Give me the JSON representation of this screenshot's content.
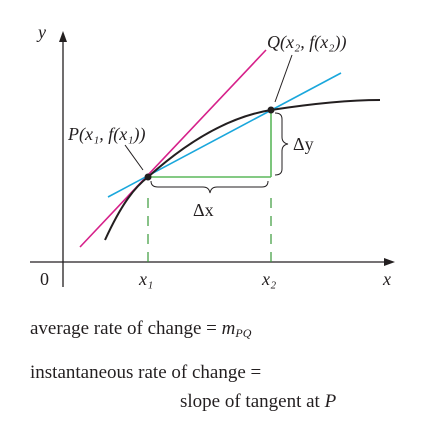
{
  "labels": {
    "axis_y": "y",
    "axis_x": "x",
    "origin": "0",
    "point_p": "P(x₁, f(x₁))",
    "point_q": "Q(x₂, f(x₂))",
    "delta_x": "Δx",
    "delta_y": "Δy",
    "tick_x1": "x₁",
    "tick_x2": "x₂"
  },
  "captions": {
    "line1_text": "average rate of change = ",
    "line1_m": "m",
    "line1_sub": "PQ",
    "line2": "instantaneous rate of change =",
    "line3_text": "slope of tangent at ",
    "line3_p": "P"
  },
  "colors": {
    "curve": "#231f20",
    "tangent_line": "#d6218a",
    "secant_line": "#1aa7dc",
    "delta_segments": "#5cb85c",
    "dashed_guides": "#3a9a3a",
    "axes": "#231f20"
  }
}
